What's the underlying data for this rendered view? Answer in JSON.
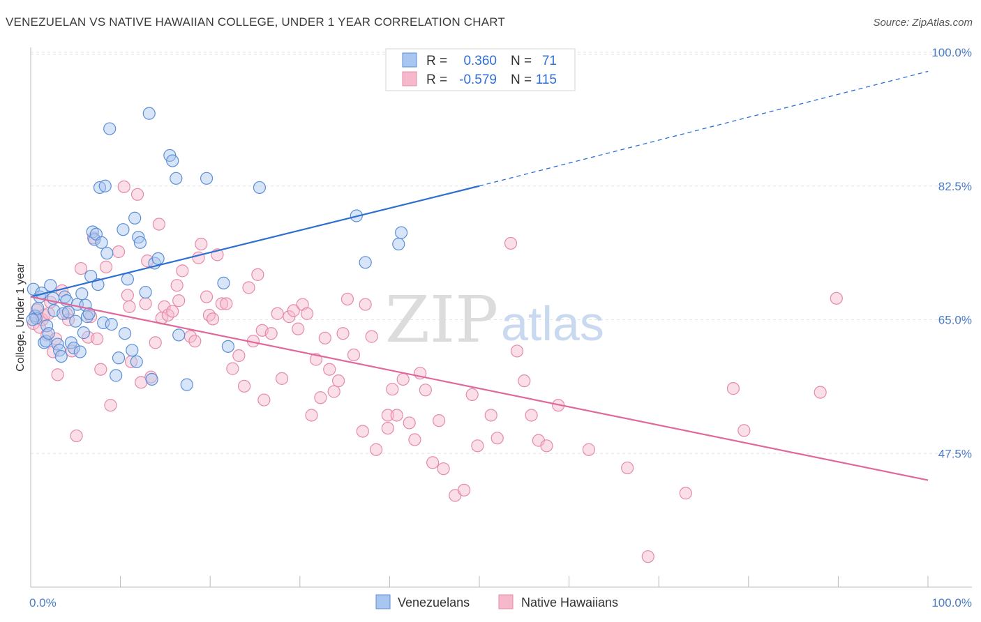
{
  "title": "VENEZUELAN VS NATIVE HAWAIIAN COLLEGE, UNDER 1 YEAR CORRELATION CHART",
  "source": "Source: ZipAtlas.com",
  "watermark": {
    "zip": "ZIP",
    "atlas": "atlas"
  },
  "colors": {
    "blue_fill": "#a8c6ef",
    "blue_stroke": "#5b8fd6",
    "blue_line": "#2c6fd1",
    "pink_fill": "#f6b9cc",
    "pink_stroke": "#e58aa8",
    "pink_line": "#e0689a",
    "grid": "#e4e4e4",
    "axis": "#bbbbbb"
  },
  "legend": {
    "rows": [
      {
        "r_label": "R =",
        "r_value": "0.360",
        "n_label": "N =",
        "n_value": "71"
      },
      {
        "r_label": "R =",
        "r_value": "-0.579",
        "n_label": "N =",
        "n_value": "115"
      }
    ]
  },
  "bottom_legend": {
    "series1": "Venezuelans",
    "series2": "Native Hawaiians"
  },
  "chart_data": {
    "type": "scatter",
    "ylabel": "College, Under 1 year",
    "xlim": [
      0,
      100
    ],
    "ylim": [
      30,
      100
    ],
    "x_tick_labels": [
      "0.0%",
      "100.0%"
    ],
    "y_ticks": [
      47.5,
      65.0,
      82.5,
      100.0
    ],
    "y_tick_labels": [
      "47.5%",
      "65.0%",
      "82.5%",
      "100.0%"
    ],
    "grid": "horizontal dashed",
    "legend_position": "top-center",
    "series": [
      {
        "name": "Venezuelans",
        "color": "#a8c6ef",
        "trend": {
          "x0": 0,
          "y0": 68.0,
          "x1": 50,
          "y1": 82.5,
          "solid_until": 50,
          "dashed_to": {
            "x": 100,
            "y": 97.5
          }
        },
        "points": [
          [
            0.3,
            69.0
          ],
          [
            0.5,
            65.5
          ],
          [
            0.6,
            65.2
          ],
          [
            0.8,
            66.5
          ],
          [
            1.0,
            68.0
          ],
          [
            1.2,
            68.5
          ],
          [
            1.5,
            62.0
          ],
          [
            1.7,
            62.2
          ],
          [
            1.8,
            64.2
          ],
          [
            2.0,
            63.2
          ],
          [
            2.2,
            69.5
          ],
          [
            2.5,
            67.8
          ],
          [
            2.6,
            66.2
          ],
          [
            3.0,
            61.8
          ],
          [
            3.2,
            61.0
          ],
          [
            3.4,
            60.2
          ],
          [
            3.6,
            65.8
          ],
          [
            3.8,
            68.0
          ],
          [
            4.0,
            67.5
          ],
          [
            4.2,
            66.0
          ],
          [
            4.5,
            62.0
          ],
          [
            4.8,
            61.3
          ],
          [
            5.0,
            64.8
          ],
          [
            5.2,
            67.0
          ],
          [
            5.5,
            60.8
          ],
          [
            5.7,
            68.4
          ],
          [
            5.9,
            63.3
          ],
          [
            6.1,
            66.9
          ],
          [
            6.3,
            65.4
          ],
          [
            6.5,
            65.8
          ],
          [
            6.7,
            70.7
          ],
          [
            6.9,
            76.5
          ],
          [
            7.1,
            75.5
          ],
          [
            7.3,
            76.2
          ],
          [
            7.5,
            69.6
          ],
          [
            7.7,
            82.3
          ],
          [
            7.9,
            75.1
          ],
          [
            8.1,
            64.6
          ],
          [
            8.3,
            82.5
          ],
          [
            8.5,
            73.7
          ],
          [
            8.8,
            90.0
          ],
          [
            9.0,
            64.4
          ],
          [
            9.5,
            57.7
          ],
          [
            9.8,
            60.0
          ],
          [
            10.3,
            76.8
          ],
          [
            10.5,
            63.2
          ],
          [
            10.8,
            70.3
          ],
          [
            11.3,
            61.0
          ],
          [
            11.6,
            78.3
          ],
          [
            11.8,
            59.5
          ],
          [
            12.0,
            75.8
          ],
          [
            12.2,
            75.1
          ],
          [
            12.8,
            68.6
          ],
          [
            13.2,
            92.0
          ],
          [
            13.5,
            57.2
          ],
          [
            13.8,
            72.4
          ],
          [
            14.2,
            73.0
          ],
          [
            15.5,
            86.5
          ],
          [
            15.8,
            85.8
          ],
          [
            16.2,
            83.5
          ],
          [
            16.5,
            63.0
          ],
          [
            17.4,
            56.5
          ],
          [
            19.6,
            83.5
          ],
          [
            21.5,
            69.8
          ],
          [
            22.0,
            61.5
          ],
          [
            25.5,
            82.3
          ],
          [
            36.3,
            78.6
          ],
          [
            37.3,
            72.5
          ],
          [
            41.0,
            74.9
          ],
          [
            41.3,
            76.4
          ],
          [
            0.2,
            65.0
          ]
        ]
      },
      {
        "name": "Native Hawaiians",
        "color": "#f6b9cc",
        "trend": {
          "x0": 0,
          "y0": 68.0,
          "x1": 100,
          "y1": 44.0
        },
        "points": [
          [
            0.3,
            64.5
          ],
          [
            0.5,
            65.5
          ],
          [
            0.7,
            66.3
          ],
          [
            1.0,
            64.0
          ],
          [
            1.3,
            65.0
          ],
          [
            1.5,
            65.6
          ],
          [
            1.8,
            63.0
          ],
          [
            2.0,
            65.8
          ],
          [
            2.2,
            67.3
          ],
          [
            2.5,
            60.8
          ],
          [
            2.8,
            62.5
          ],
          [
            3.0,
            57.8
          ],
          [
            3.5,
            68.8
          ],
          [
            4.0,
            65.8
          ],
          [
            4.2,
            65.0
          ],
          [
            4.6,
            60.9
          ],
          [
            5.1,
            49.8
          ],
          [
            5.6,
            71.7
          ],
          [
            6.4,
            62.7
          ],
          [
            6.7,
            65.4
          ],
          [
            7.0,
            75.7
          ],
          [
            7.4,
            62.5
          ],
          [
            7.8,
            58.5
          ],
          [
            8.4,
            71.9
          ],
          [
            8.9,
            53.8
          ],
          [
            9.8,
            73.9
          ],
          [
            10.4,
            82.4
          ],
          [
            10.8,
            68.2
          ],
          [
            11.0,
            66.7
          ],
          [
            11.2,
            59.5
          ],
          [
            11.9,
            81.4
          ],
          [
            12.3,
            56.8
          ],
          [
            12.8,
            67.1
          ],
          [
            13.0,
            72.7
          ],
          [
            13.4,
            57.5
          ],
          [
            13.9,
            62.0
          ],
          [
            14.3,
            77.5
          ],
          [
            14.6,
            65.2
          ],
          [
            14.9,
            66.7
          ],
          [
            15.3,
            65.6
          ],
          [
            15.8,
            66.1
          ],
          [
            16.3,
            69.5
          ],
          [
            16.5,
            67.5
          ],
          [
            16.9,
            71.4
          ],
          [
            17.8,
            62.8
          ],
          [
            18.3,
            62.2
          ],
          [
            18.7,
            73.1
          ],
          [
            19.0,
            74.9
          ],
          [
            19.6,
            68.0
          ],
          [
            19.9,
            65.6
          ],
          [
            20.3,
            65.1
          ],
          [
            20.8,
            73.5
          ],
          [
            21.3,
            67.1
          ],
          [
            21.8,
            67.1
          ],
          [
            22.5,
            58.6
          ],
          [
            23.2,
            60.3
          ],
          [
            23.8,
            56.3
          ],
          [
            24.3,
            69.2
          ],
          [
            24.8,
            62.2
          ],
          [
            25.3,
            70.9
          ],
          [
            25.8,
            63.6
          ],
          [
            26.0,
            54.5
          ],
          [
            26.8,
            63.2
          ],
          [
            27.5,
            65.8
          ],
          [
            28.0,
            57.3
          ],
          [
            28.8,
            65.4
          ],
          [
            29.3,
            66.2
          ],
          [
            29.8,
            63.8
          ],
          [
            30.3,
            67.0
          ],
          [
            30.8,
            65.8
          ],
          [
            31.3,
            52.5
          ],
          [
            31.8,
            59.8
          ],
          [
            32.3,
            54.8
          ],
          [
            32.8,
            62.6
          ],
          [
            33.3,
            58.5
          ],
          [
            33.8,
            55.6
          ],
          [
            34.3,
            57.0
          ],
          [
            34.8,
            63.2
          ],
          [
            35.3,
            67.7
          ],
          [
            36.0,
            60.4
          ],
          [
            37.0,
            50.4
          ],
          [
            37.3,
            67.0
          ],
          [
            38.0,
            62.8
          ],
          [
            38.5,
            48.0
          ],
          [
            39.8,
            50.8
          ],
          [
            39.8,
            52.5
          ],
          [
            40.3,
            55.9
          ],
          [
            40.8,
            52.5
          ],
          [
            41.5,
            57.2
          ],
          [
            42.2,
            51.5
          ],
          [
            42.8,
            49.3
          ],
          [
            43.4,
            58.0
          ],
          [
            44.0,
            55.8
          ],
          [
            44.8,
            46.3
          ],
          [
            45.5,
            51.8
          ],
          [
            46.0,
            45.5
          ],
          [
            47.3,
            42.0
          ],
          [
            48.3,
            42.7
          ],
          [
            49.2,
            55.2
          ],
          [
            49.8,
            48.5
          ],
          [
            51.3,
            52.5
          ],
          [
            52.0,
            49.5
          ],
          [
            53.5,
            75.0
          ],
          [
            54.2,
            60.9
          ],
          [
            55.0,
            57.0
          ],
          [
            55.8,
            52.5
          ],
          [
            56.6,
            49.2
          ],
          [
            57.5,
            48.5
          ],
          [
            58.8,
            53.8
          ],
          [
            62.2,
            48.0
          ],
          [
            66.5,
            45.6
          ],
          [
            68.8,
            34.0
          ],
          [
            73.0,
            42.3
          ],
          [
            78.3,
            56.0
          ],
          [
            79.5,
            50.5
          ],
          [
            88.0,
            55.5
          ],
          [
            89.8,
            67.8
          ]
        ]
      }
    ]
  }
}
